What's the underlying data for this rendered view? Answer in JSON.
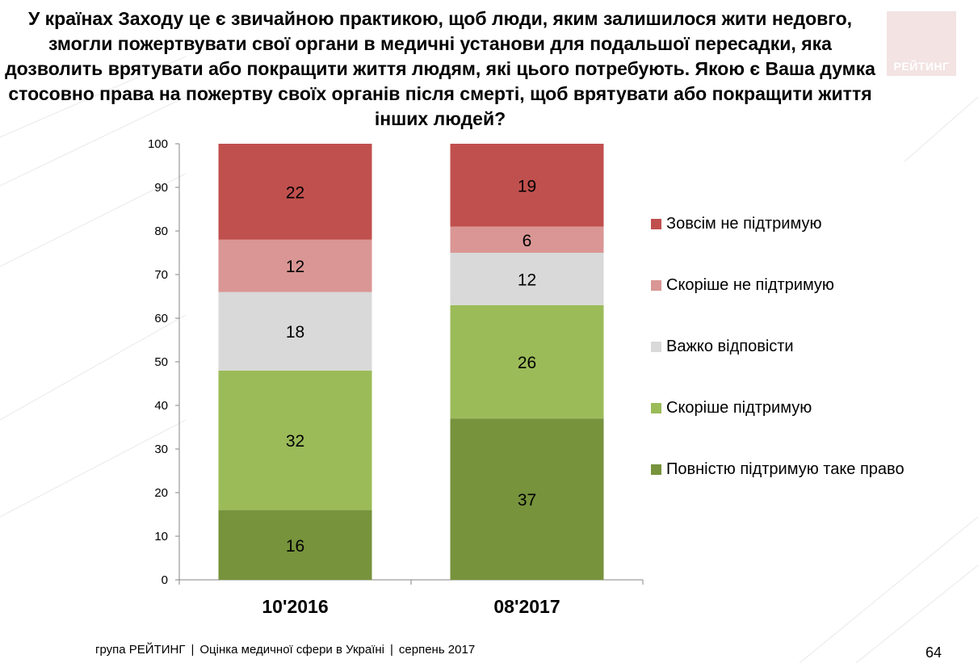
{
  "title": "У країнах Заходу це є звичайною практикою, щоб люди, яким залишилося жити недовго, змогли пожертвувати свої органи в медичні установи для подальшої пересадки, яка дозволить врятувати або покращити життя людям, які цього потребують. Якою є Ваша думка стосовно права на пожертву своїх органів після смерті, щоб врятувати або покращити життя інших людей?",
  "title_lines": [
    "У країнах Заходу це є звичайною практикою, щоб люди, яким залишилося жити недовго,",
    "змогли пожертвувати свої органи в медичні установи для подальшої пересадки, яка",
    "дозволить врятувати або покращити життя людям, які цього потребують. Якою є Ваша думка",
    "стосовно права на пожертву своїх органів після смерті, щоб врятувати або покращити життя",
    "інших людей?"
  ],
  "logo": {
    "text": "РЕЙТИНГ"
  },
  "footer": {
    "org": "група РЕЙТИНГ",
    "survey": "Оцінка медичної сфери в Україні",
    "date": "серпень 2017",
    "separator": "|"
  },
  "page_number": "64",
  "chart_data": {
    "type": "bar",
    "stacked": true,
    "categories": [
      "10'2016",
      "08'2017"
    ],
    "ylim": [
      0,
      100
    ],
    "yticks": [
      0,
      10,
      20,
      30,
      40,
      50,
      60,
      70,
      80,
      90,
      100
    ],
    "grid": false,
    "legend_position": "right",
    "xlabel": "",
    "ylabel": "",
    "series": [
      {
        "name": "Повністю підтримую таке право",
        "color": "#77933c",
        "values": [
          16,
          37
        ]
      },
      {
        "name": "Скоріше підтримую",
        "color": "#9bbb59",
        "values": [
          32,
          26
        ]
      },
      {
        "name": "Важко відповісти",
        "color": "#d9d9d9",
        "values": [
          18,
          12
        ]
      },
      {
        "name": "Скоріше не підтримую",
        "color": "#d99694",
        "values": [
          12,
          6
        ]
      },
      {
        "name": "Зовсім не підтримую",
        "color": "#c0504d",
        "values": [
          22,
          19
        ]
      }
    ]
  }
}
